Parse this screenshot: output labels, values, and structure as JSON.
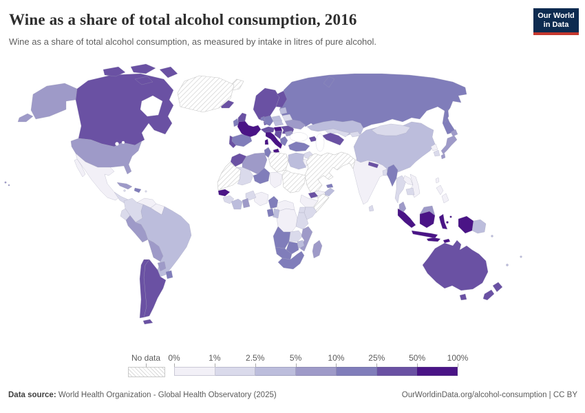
{
  "header": {
    "title": "Wine as a share of total alcohol consumption, 2016",
    "subtitle": "Wine as a share of total alcohol consumption, as measured by intake in litres of pure alcohol.",
    "logo": {
      "line1": "Our World",
      "line2": "in Data",
      "bg_color": "#0d2b50",
      "accent_color": "#c5382e"
    }
  },
  "legend": {
    "no_data_label": "No data",
    "tick_labels": [
      "0%",
      "1%",
      "2.5%",
      "5%",
      "10%",
      "25%",
      "50%",
      "100%"
    ]
  },
  "footer": {
    "source_bold": "Data source:",
    "source_rest": " World Health Organization - Global Health Observatory (2025)",
    "credit": "OurWorldinData.org/alcohol-consumption | CC BY"
  },
  "chart_data": {
    "type": "choropleth",
    "title": "Wine as a share of total alcohol consumption, 2016",
    "unit": "% of total alcohol consumption",
    "year": "2016",
    "legend_position": "bottom",
    "bin_edges": [
      "0%",
      "1%",
      "2.5%",
      "5%",
      "10%",
      "25%",
      "50%",
      "100%"
    ],
    "bins": [
      {
        "label": "0-1%",
        "color": "#f2f0f7"
      },
      {
        "label": "1-2.5%",
        "color": "#dadaeb"
      },
      {
        "label": "2.5-5%",
        "color": "#bcbddc"
      },
      {
        "label": "5-10%",
        "color": "#9e9ac8"
      },
      {
        "label": "10-25%",
        "color": "#807dba"
      },
      {
        "label": "25-50%",
        "color": "#6a51a3"
      },
      {
        "label": "50-100%",
        "color": "#4a1486"
      }
    ],
    "no_data": {
      "label": "No data",
      "fill": "hatched"
    },
    "regions": {
      "greenland": [
        "Greenland",
        "no-data"
      ],
      "iceland": [
        "Iceland",
        "25-50%"
      ],
      "svalbard": [
        "Svalbard",
        "no-data"
      ],
      "canada": [
        "Canada",
        "25-50%"
      ],
      "united-states": [
        "United States",
        "5-10%"
      ],
      "mexico": [
        "Mexico",
        "0-1%"
      ],
      "central-america": [
        "Central America",
        "1-2.5%"
      ],
      "cuba": [
        "Cuba",
        "5-10%"
      ],
      "hispaniola": [
        "Dominican Republic/Haiti",
        "10-25%"
      ],
      "caribbean": [
        "Caribbean islands",
        "1-2.5%"
      ],
      "colombia": [
        "Colombia",
        "1-2.5%"
      ],
      "venezuela": [
        "Venezuela",
        "0-1%"
      ],
      "guyanas": [
        "Guyana/Suriname",
        "0-1%"
      ],
      "ecuador": [
        "Ecuador",
        "1-2.5%"
      ],
      "peru": [
        "Peru",
        "5-10%"
      ],
      "brazil": [
        "Brazil",
        "2.5-5%"
      ],
      "bolivia": [
        "Bolivia",
        "5-10%"
      ],
      "paraguay": [
        "Paraguay",
        "5-10%"
      ],
      "uruguay": [
        "Uruguay",
        "10-25%"
      ],
      "argentina": [
        "Argentina",
        "25-50%"
      ],
      "chile": [
        "Chile",
        "25-50%"
      ],
      "united-kingdom": [
        "United Kingdom",
        "25-50%"
      ],
      "ireland": [
        "Ireland",
        "10-25%"
      ],
      "norway-sweden": [
        "Norway/Sweden",
        "25-50%"
      ],
      "denmark": [
        "Denmark",
        "25-50%"
      ],
      "finland": [
        "Finland",
        "25-50%"
      ],
      "baltics": [
        "Baltic states",
        "2.5-5%"
      ],
      "belarus": [
        "Belarus",
        "1-2.5%"
      ],
      "poland": [
        "Poland",
        "2.5-5%"
      ],
      "germany": [
        "Germany",
        "10-25%"
      ],
      "benelux": [
        "Belgium/Netherlands",
        "10-25%"
      ],
      "france": [
        "France",
        "50-100%"
      ],
      "alpine": [
        "Switzerland/Austria",
        "25-50%"
      ],
      "czech-slovakia": [
        "Czechia/Slovakia",
        "2.5-5%"
      ],
      "croatia-slovenia": [
        "Croatia/Slovenia",
        "50-100%"
      ],
      "romania": [
        "Hungary/Romania",
        "25-50%"
      ],
      "balkans": [
        "Serbia/Bosnia/Albania",
        "25-50%"
      ],
      "greece": [
        "Greece",
        "10-25%"
      ],
      "bulgaria": [
        "Bulgaria",
        "5-10%"
      ],
      "ukraine": [
        "Ukraine",
        "5-10%"
      ],
      "italy": [
        "Italy",
        "50-100%"
      ],
      "spain": [
        "Spain",
        "10-25%"
      ],
      "portugal": [
        "Portugal",
        "25-50%"
      ],
      "russia": [
        "Russia",
        "10-25%"
      ],
      "kazakhstan": [
        "Kazakhstan",
        "2.5-5%"
      ],
      "uzbekistan": [
        "Uzbekistan",
        "1-2.5%"
      ],
      "turkmenistan": [
        "Turkmenistan",
        "25-50%"
      ],
      "kyrgyzstan-tajikistan": [
        "Kyrgyzstan/Tajikistan",
        "1-2.5%"
      ],
      "caucasus": [
        "Georgia/Azerbaijan",
        "25-50%"
      ],
      "turkey": [
        "Turkey",
        "10-25%"
      ],
      "syria": [
        "Syria/Lebanon",
        "1-2.5%"
      ],
      "israel-jordan": [
        "Israel/Jordan",
        "0-1%"
      ],
      "middle-east": [
        "Saudi Arabia/Iraq/Iran/Afghanistan/Pakistan",
        "no-data"
      ],
      "yemen": [
        "Yemen",
        "0-1%"
      ],
      "oman": [
        "Oman",
        "2.5-5%"
      ],
      "uae": [
        "United Arab Emirates",
        "10-25%"
      ],
      "morocco": [
        "Morocco",
        "25-50%"
      ],
      "mauritania": [
        "Western Sahara/Mauritania",
        "no-data"
      ],
      "algeria": [
        "Algeria",
        "5-10%"
      ],
      "tunisia": [
        "Tunisia",
        "10-25%"
      ],
      "libya": [
        "Libya",
        "no-data"
      ],
      "egypt": [
        "Egypt",
        "2.5-5%"
      ],
      "mali": [
        "Mali",
        "1-2.5%"
      ],
      "niger": [
        "Niger",
        "10-25%"
      ],
      "chad": [
        "Chad",
        "0-1%"
      ],
      "sudan": [
        "Sudan",
        "no-data"
      ],
      "eritrea-djibouti": [
        "Eritrea/Djibouti",
        "25-50%"
      ],
      "ethiopia": [
        "Ethiopia",
        "0-1%"
      ],
      "somalia": [
        "Somalia",
        "no-data"
      ],
      "kenya": [
        "Kenya",
        "1-2.5%"
      ],
      "uganda": [
        "Uganda",
        "1-2.5%"
      ],
      "tanzania": [
        "Tanzania",
        "1-2.5%"
      ],
      "drc": [
        "Democratic Republic of Congo",
        "0-1%"
      ],
      "central-african-republic": [
        "Central African Republic",
        "0-1%"
      ],
      "cameroon": [
        "Cameroon",
        "10-25%"
      ],
      "nigeria": [
        "Nigeria",
        "0-1%"
      ],
      "benin-burkina": [
        "Benin/Burkina Faso",
        "1-2.5%"
      ],
      "ghana": [
        "Ghana",
        "5-10%"
      ],
      "ivory-coast": [
        "Cote d'Ivoire/Liberia",
        "2.5-5%"
      ],
      "guinea": [
        "Guinea",
        "1-2.5%"
      ],
      "senegal": [
        "Senegal/Gambia",
        "50-100%"
      ],
      "gabon": [
        "Gabon",
        "10-25%"
      ],
      "congo": [
        "Congo",
        "2.5-5%"
      ],
      "angola": [
        "Angola",
        "10-25%"
      ],
      "zambia": [
        "Zambia",
        "1-2.5%"
      ],
      "mozambique": [
        "Mozambique",
        "5-10%"
      ],
      "zimbabwe": [
        "Zimbabwe",
        "2.5-5%"
      ],
      "botswana": [
        "Botswana",
        "10-25%"
      ],
      "namibia": [
        "Namibia",
        "10-25%"
      ],
      "south-africa": [
        "South Africa",
        "10-25%"
      ],
      "madagascar": [
        "Madagascar",
        "5-10%"
      ],
      "china": [
        "China",
        "2.5-5%"
      ],
      "mongolia": [
        "Mongolia",
        "1-2.5%"
      ],
      "north-korea": [
        "North Korea",
        "0-1%"
      ],
      "south-korea": [
        "South Korea",
        "1-2.5%"
      ],
      "japan": [
        "Japan",
        "5-10%"
      ],
      "taiwan": [
        "Taiwan",
        "0-1%"
      ],
      "india": [
        "India",
        "0-1%"
      ],
      "nepal": [
        "Nepal",
        "25-50%"
      ],
      "bangladesh": [
        "Bangladesh",
        "1-2.5%"
      ],
      "sri-lanka": [
        "Sri Lanka",
        "1-2.5%"
      ],
      "myanmar": [
        "Myanmar",
        "10-25%"
      ],
      "thailand": [
        "Thailand",
        "1-2.5%"
      ],
      "laos": [
        "Laos",
        "0-1%"
      ],
      "vietnam": [
        "Vietnam",
        "0-1%"
      ],
      "cambodia": [
        "Cambodia",
        "1-2.5%"
      ],
      "malaysia": [
        "Malaysia",
        "5-10%"
      ],
      "philippines": [
        "Philippines",
        "0-1%"
      ],
      "indonesia": [
        "Indonesia",
        "50-100%"
      ],
      "papua-new-guinea": [
        "Papua New Guinea",
        "2.5-5%"
      ],
      "pacific-islands": [
        "Pacific islands",
        "2.5-5%"
      ],
      "australia": [
        "Australia",
        "25-50%"
      ],
      "new-zealand": [
        "New Zealand",
        "25-50%"
      ]
    }
  }
}
